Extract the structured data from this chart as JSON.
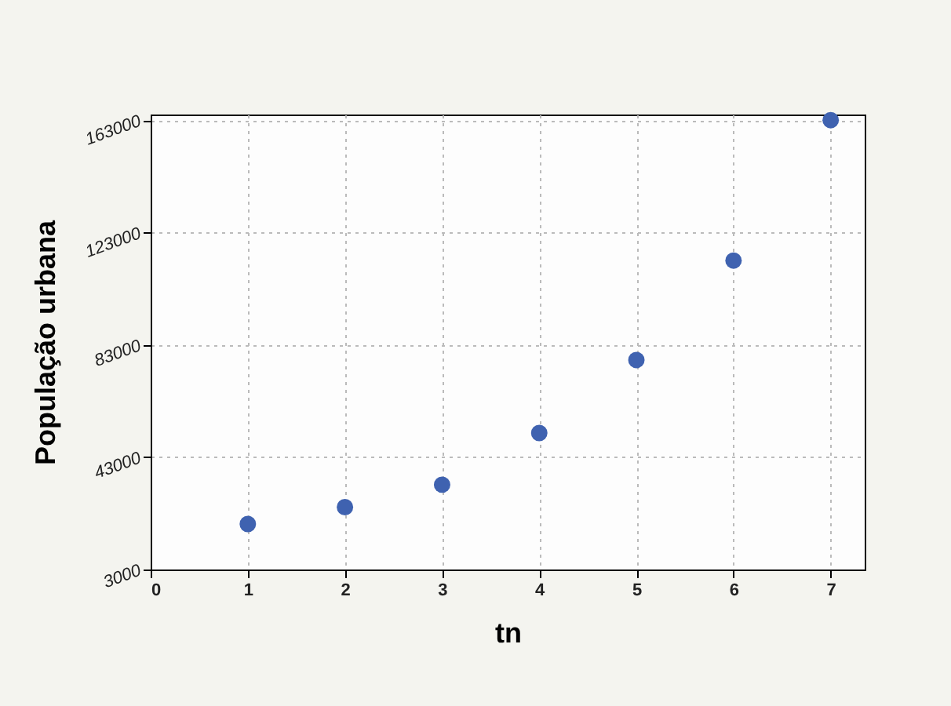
{
  "chart_data": {
    "type": "scatter",
    "xlabel": "tn",
    "ylabel": "População urbana",
    "x": [
      1,
      2,
      3,
      4,
      5,
      6,
      7
    ],
    "series": [
      {
        "color": "#3f62b0",
        "values": [
          19200,
          25200,
          33200,
          51600,
          77600,
          113000,
          163000
        ]
      }
    ],
    "xlim": [
      0,
      7.35
    ],
    "xticks": [
      0,
      1,
      2,
      3,
      4,
      5,
      6,
      7
    ],
    "ylim": [
      3000,
      165000
    ],
    "yticks": [
      3000,
      43000,
      83000,
      123000,
      163000
    ],
    "grid": true,
    "marker": "circle",
    "legend": false
  }
}
